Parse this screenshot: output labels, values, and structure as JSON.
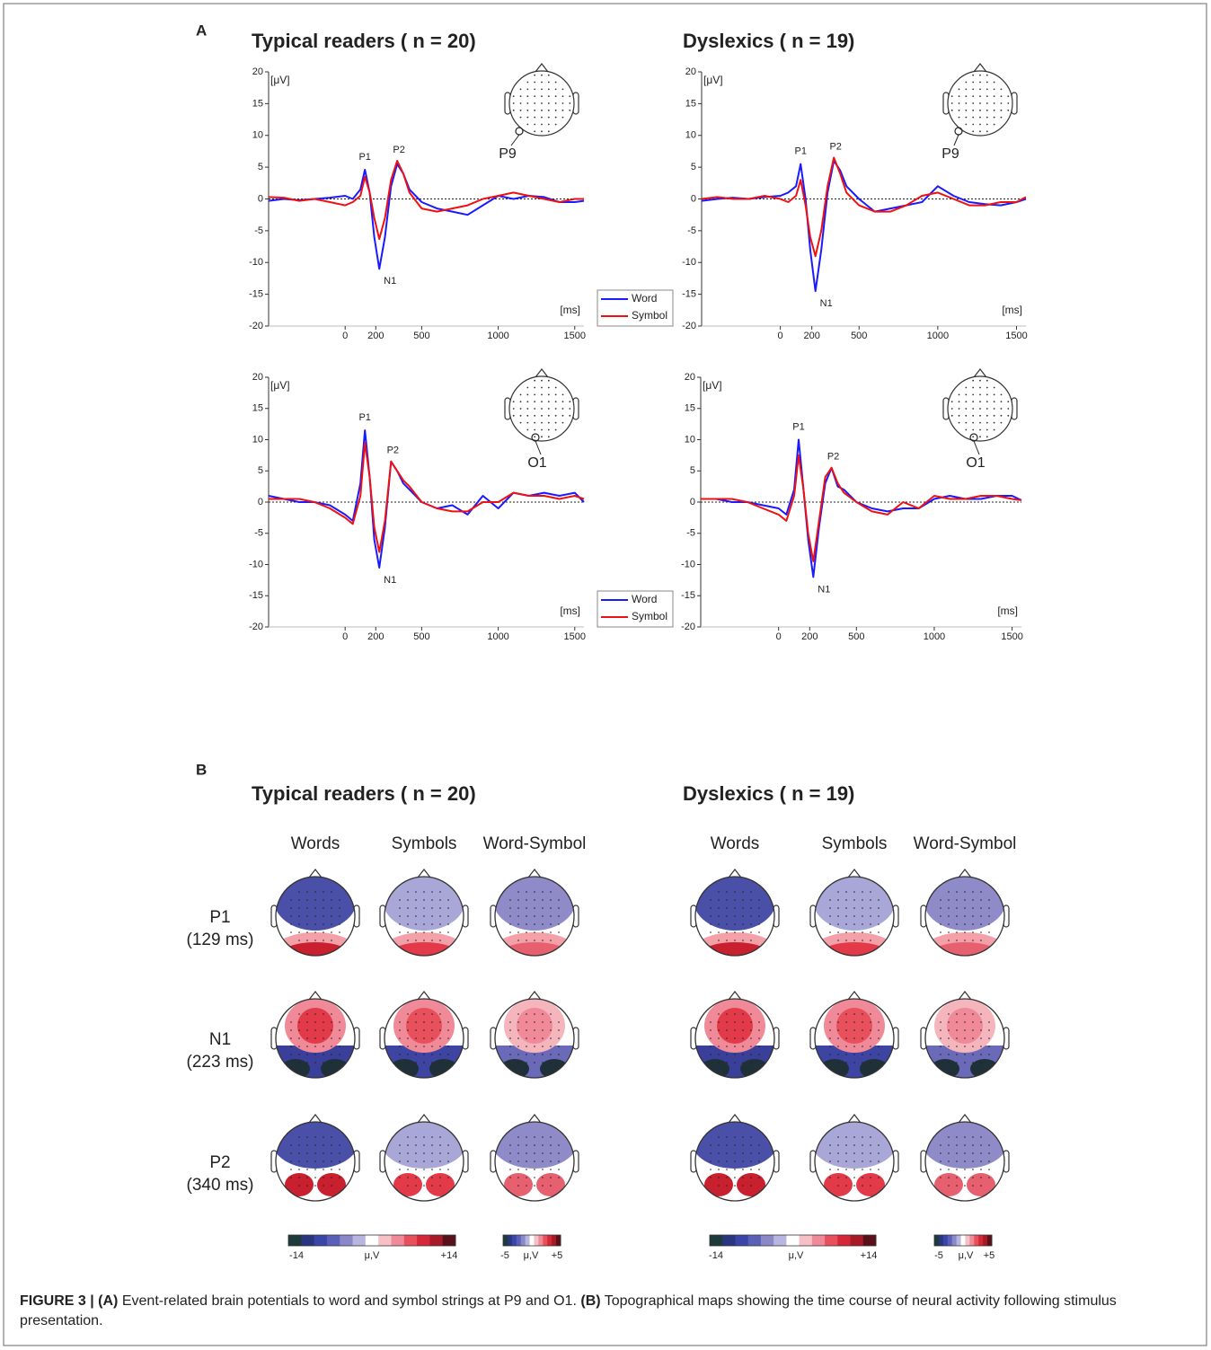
{
  "panel_a": {
    "label": "A",
    "group_titles": [
      "Typical readers ( n = 20)",
      "Dyslexics ( n = 19)"
    ]
  },
  "chart_data": [
    {
      "type": "line",
      "electrode": "P9",
      "y_unit": "[μV]",
      "x_unit": "[ms]",
      "peak_labels": [
        "P1",
        "N1",
        "P2"
      ],
      "legend": true,
      "x": [
        -500,
        -400,
        -300,
        -200,
        -100,
        0,
        50,
        100,
        129,
        160,
        190,
        223,
        260,
        300,
        340,
        380,
        420,
        500,
        600,
        700,
        800,
        900,
        1000,
        1100,
        1200,
        1300,
        1400,
        1500,
        1560
      ],
      "series": [
        {
          "name": "Word",
          "color": "#1a1aff",
          "values": [
            -0.3,
            0,
            -0.2,
            0,
            0.2,
            0.5,
            0,
            1.5,
            4.6,
            1,
            -6,
            -11,
            -6,
            2,
            5.5,
            4,
            1.5,
            -0.5,
            -1.5,
            -2,
            -2.5,
            -1,
            0.5,
            0,
            0.5,
            0.3,
            -0.5,
            -0.5,
            -0.3
          ]
        },
        {
          "name": "Symbol",
          "color": "#ee1111",
          "values": [
            0.3,
            0.2,
            -0.3,
            0,
            -0.5,
            -1,
            -0.5,
            0.5,
            3.5,
            1,
            -3,
            -6.3,
            -3,
            3,
            6,
            4,
            1,
            -1.5,
            -2,
            -1.5,
            -1,
            0,
            0.5,
            1,
            0.5,
            0,
            -0.5,
            0,
            0
          ]
        }
      ],
      "xlim": [
        -500,
        1560
      ],
      "ylim": [
        -20,
        20
      ],
      "xticks": [
        0,
        200,
        500,
        1000,
        1500
      ],
      "yticks": [
        -20,
        -15,
        -10,
        -5,
        0,
        5,
        10,
        15,
        20
      ],
      "grid": false
    },
    {
      "type": "line",
      "electrode": "P9",
      "y_unit": "[μV]",
      "x_unit": "[ms]",
      "peak_labels": [
        "P1",
        "N1",
        "P2"
      ],
      "legend": false,
      "x": [
        -500,
        -400,
        -300,
        -200,
        -100,
        0,
        50,
        100,
        129,
        160,
        190,
        223,
        260,
        300,
        340,
        380,
        420,
        500,
        600,
        700,
        800,
        900,
        1000,
        1100,
        1200,
        1300,
        1400,
        1500,
        1560
      ],
      "series": [
        {
          "name": "Word",
          "color": "#1a1aff",
          "values": [
            -0.3,
            0,
            0.2,
            0,
            0.3,
            0.5,
            1,
            2,
            5.5,
            0,
            -8,
            -14.5,
            -8,
            1,
            6,
            4.5,
            2,
            0,
            -2,
            -1.5,
            -1,
            -0.5,
            2,
            0.5,
            -0.5,
            -0.8,
            -1,
            -0.5,
            0
          ]
        },
        {
          "name": "Symbol",
          "color": "#ee1111",
          "values": [
            0,
            0.3,
            0,
            0,
            0.5,
            0,
            -0.5,
            0.5,
            3,
            -1,
            -6,
            -9,
            -5,
            2,
            6.5,
            4,
            1,
            -1,
            -2,
            -2,
            -1,
            0.5,
            1,
            0,
            -1,
            -1,
            -0.5,
            -0.5,
            0.3
          ]
        }
      ],
      "xlim": [
        -500,
        1560
      ],
      "ylim": [
        -20,
        20
      ],
      "xticks": [
        0,
        200,
        500,
        1000,
        1500
      ],
      "yticks": [
        -20,
        -15,
        -10,
        -5,
        0,
        5,
        10,
        15,
        20
      ],
      "grid": false
    },
    {
      "type": "line",
      "electrode": "O1",
      "y_unit": "[μV]",
      "x_unit": "[ms]",
      "peak_labels": [
        "P1",
        "N1",
        "P2"
      ],
      "legend": true,
      "x": [
        -500,
        -400,
        -300,
        -200,
        -100,
        0,
        50,
        100,
        129,
        160,
        190,
        223,
        260,
        300,
        340,
        380,
        420,
        500,
        600,
        700,
        800,
        900,
        1000,
        1100,
        1200,
        1300,
        1400,
        1500,
        1560
      ],
      "series": [
        {
          "name": "Word",
          "color": "#1a1aff",
          "values": [
            1,
            0.5,
            0,
            0,
            -0.5,
            -2,
            -3,
            3,
            11.5,
            4,
            -6,
            -10.5,
            -4,
            6.5,
            5,
            3,
            2,
            0,
            -1,
            -0.5,
            -2,
            1,
            -1,
            1.5,
            1,
            1.5,
            1,
            1.5,
            0
          ]
        },
        {
          "name": "Symbol",
          "color": "#ee1111",
          "values": [
            0.5,
            0.5,
            0.5,
            0,
            -1,
            -2.5,
            -3.5,
            1,
            9.5,
            4,
            -4,
            -8,
            -3,
            6.5,
            5,
            3.5,
            2.5,
            0,
            -1,
            -1.5,
            -1.5,
            0,
            0,
            1.5,
            1,
            1,
            0.5,
            1,
            0.5
          ]
        }
      ],
      "xlim": [
        -500,
        1560
      ],
      "ylim": [
        -20,
        20
      ],
      "xticks": [
        0,
        200,
        500,
        1000,
        1500
      ],
      "yticks": [
        -20,
        -15,
        -10,
        -5,
        0,
        5,
        10,
        15,
        20
      ],
      "grid": false
    },
    {
      "type": "line",
      "electrode": "O1",
      "y_unit": "[μV]",
      "x_unit": "[ms]",
      "peak_labels": [
        "P1",
        "N1",
        "P2"
      ],
      "legend": false,
      "x": [
        -500,
        -400,
        -300,
        -200,
        -100,
        0,
        50,
        100,
        129,
        160,
        190,
        223,
        260,
        300,
        340,
        380,
        420,
        500,
        600,
        700,
        800,
        900,
        1000,
        1100,
        1200,
        1300,
        1400,
        1500,
        1560
      ],
      "series": [
        {
          "name": "Word",
          "color": "#1a1aff",
          "values": [
            0.5,
            0.5,
            0,
            0,
            -0.5,
            -1,
            -2,
            2,
            10,
            2,
            -6,
            -12,
            -4,
            3,
            5.5,
            2.5,
            2,
            0,
            -1,
            -1.5,
            -1,
            -1,
            0.5,
            1,
            0.5,
            0.5,
            1,
            1,
            0.3
          ]
        },
        {
          "name": "Symbol",
          "color": "#ee1111",
          "values": [
            0.5,
            0.5,
            0.5,
            0,
            -1,
            -2,
            -3,
            1,
            7.5,
            2,
            -5,
            -9.5,
            -3,
            4,
            5.5,
            3,
            1.5,
            0,
            -1.5,
            -2,
            0,
            -1,
            1,
            0.5,
            0.5,
            1,
            1,
            0.5,
            0.3
          ]
        }
      ],
      "xlim": [
        -500,
        1560
      ],
      "ylim": [
        -20,
        20
      ],
      "xticks": [
        0,
        200,
        500,
        1000,
        1500
      ],
      "yticks": [
        -20,
        -15,
        -10,
        -5,
        0,
        5,
        10,
        15,
        20
      ],
      "grid": false
    }
  ],
  "panel_b": {
    "label": "B",
    "group_titles": [
      "Typical readers ( n = 20)",
      "Dyslexics ( n = 19)"
    ],
    "column_headers": [
      "Words",
      "Symbols",
      "Word-Symbol"
    ],
    "rows": [
      {
        "component": "P1",
        "latency": "(129 ms)"
      },
      {
        "component": "N1",
        "latency": "(223 ms)"
      },
      {
        "component": "P2",
        "latency": "(340 ms)"
      }
    ],
    "colorbars": [
      {
        "min": "-14",
        "unit": "μ,V",
        "max": "+14"
      },
      {
        "min": "-5",
        "unit": "μ,V",
        "max": "+5"
      }
    ]
  },
  "caption": {
    "figure": "FIGURE 3 |",
    "a_label": "(A)",
    "a_text": "Event-related brain potentials to word and symbol strings at P9 and O1.",
    "b_label": "(B)",
    "b_text": "Topographical maps showing the time course of neural activity following stimulus presentation."
  }
}
